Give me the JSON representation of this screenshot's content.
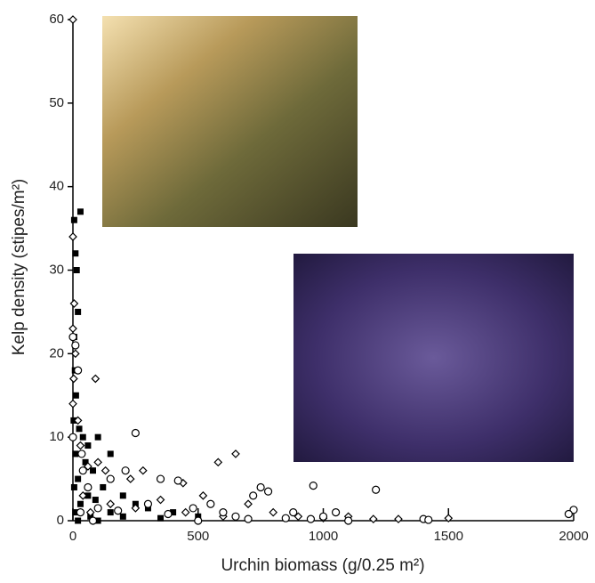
{
  "chart_data": {
    "type": "scatter",
    "x_label": "Urchin biomass (g/0.25 m²)",
    "y_label": "Kelp density (stipes/m²)",
    "xlim": [
      0,
      2000
    ],
    "xticks": [
      0,
      500,
      1000,
      1500,
      2000
    ],
    "ylim": [
      0,
      60
    ],
    "yticks": [
      0,
      10,
      20,
      30,
      40,
      50,
      60
    ],
    "series": [
      {
        "marker": "square",
        "color": "#000000",
        "x": [
          5,
          30,
          10,
          15,
          20,
          5,
          8,
          12,
          3,
          25,
          40,
          60,
          100,
          150,
          10,
          50,
          80,
          20,
          120,
          5,
          60,
          200,
          90,
          250,
          30,
          300,
          150,
          10,
          400,
          70,
          200,
          500,
          20,
          100,
          350
        ],
        "y": [
          36,
          37,
          32,
          30,
          25,
          22,
          18,
          15,
          12,
          11,
          10,
          9,
          10,
          8,
          8,
          7,
          6,
          5,
          4,
          4,
          3,
          3,
          2.5,
          2,
          2,
          1.5,
          1,
          1,
          1,
          0.5,
          0.5,
          0.5,
          0,
          0,
          0.3
        ]
      },
      {
        "marker": "diamond",
        "color": "#000000",
        "x": [
          0,
          0,
          5,
          0,
          10,
          3,
          90,
          0,
          20,
          30,
          100,
          60,
          130,
          280,
          230,
          440,
          580,
          650,
          520,
          350,
          700,
          800,
          900,
          1000,
          1100,
          1200,
          1300,
          1500,
          450,
          600,
          250,
          150,
          40,
          70
        ],
        "y": [
          60,
          34,
          26,
          23,
          20,
          17,
          17,
          14,
          12,
          9,
          7,
          6.5,
          6,
          6,
          5,
          4.5,
          7,
          8,
          3,
          2.5,
          2,
          1,
          0.5,
          0.3,
          0.5,
          0.2,
          0.2,
          0.3,
          1,
          0.5,
          1.5,
          2,
          3,
          1
        ]
      },
      {
        "marker": "circle",
        "color": "#000000",
        "x": [
          0,
          10,
          20,
          0,
          35,
          40,
          60,
          250,
          210,
          150,
          350,
          420,
          750,
          780,
          720,
          960,
          1210,
          1000,
          1050,
          1400,
          1420,
          2000,
          1980,
          300,
          480,
          550,
          600,
          650,
          850,
          880,
          380,
          180,
          100,
          700,
          1100,
          950,
          500,
          30,
          80
        ],
        "y": [
          22,
          21,
          18,
          10,
          8,
          6,
          4,
          10.5,
          6,
          5,
          5,
          4.8,
          4,
          3.5,
          3,
          4.2,
          3.7,
          0.5,
          1,
          0.2,
          0.1,
          1.3,
          0.8,
          2,
          1.5,
          2,
          1,
          0.5,
          0.3,
          1,
          0.8,
          1.2,
          1.5,
          0.2,
          0,
          0.2,
          0,
          1,
          0
        ]
      }
    ]
  }
}
